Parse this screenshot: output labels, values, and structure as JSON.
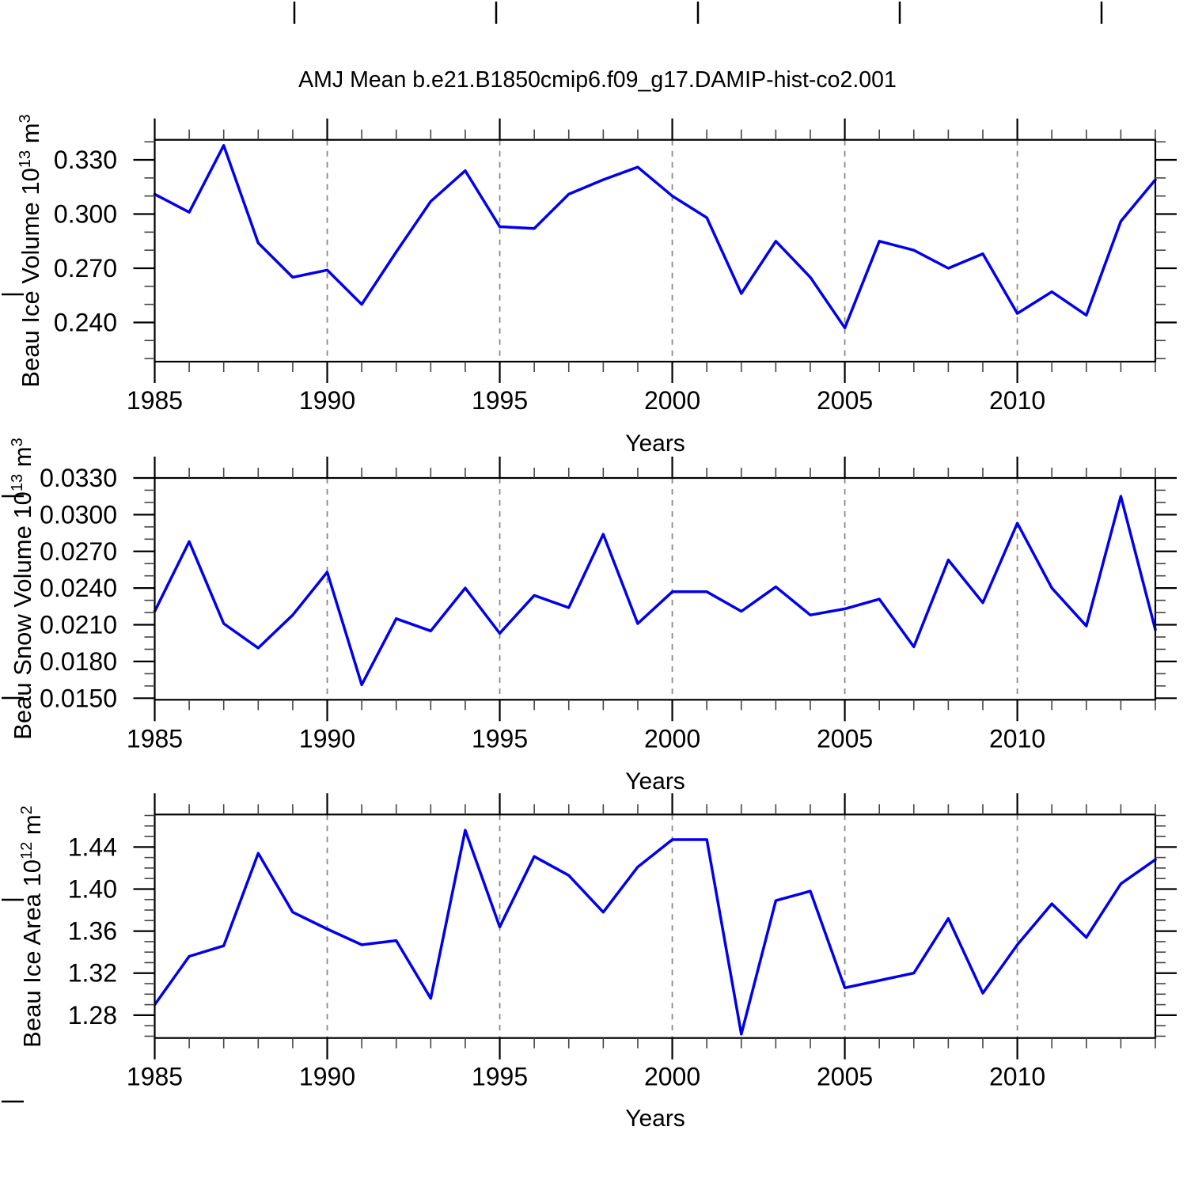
{
  "title": "AMJ Mean b.e21.B1850cmip6.f09_g17.DAMIP-hist-co2.001",
  "line_color": "#0000ee",
  "years": [
    1985,
    1986,
    1987,
    1988,
    1989,
    1990,
    1991,
    1992,
    1993,
    1994,
    1995,
    1996,
    1997,
    1998,
    1999,
    2000,
    2001,
    2002,
    2003,
    2004,
    2005,
    2006,
    2007,
    2008,
    2009,
    2010,
    2011,
    2012,
    2013,
    2014
  ],
  "x_major_ticks": [
    1985,
    1990,
    1995,
    2000,
    2005,
    2010
  ],
  "grid_years": [
    1990,
    1995,
    2000,
    2005,
    2010
  ],
  "chart_data": [
    {
      "type": "line",
      "name": "beau-ice-volume",
      "ylabel": {
        "base1": "Beau Ice Volume 10",
        "sup1": "13",
        "base2": " m",
        "sup2": "3"
      },
      "xlabel": "Years",
      "x_tick_labels": [
        "1985",
        "1990",
        "1995",
        "2000",
        "2005",
        "2010"
      ],
      "x_range": [
        1985,
        2014
      ],
      "ylim": [
        0.2183,
        0.3411
      ],
      "y_major_ticks": [
        0.24,
        0.27,
        0.3,
        0.33
      ],
      "y_major_labels": [
        "0.240",
        "0.270",
        "0.300",
        "0.330"
      ],
      "y_minor_step": 0.01,
      "grid": "dashed-vertical",
      "values": [
        0.311,
        0.301,
        0.338,
        0.284,
        0.265,
        0.269,
        0.25,
        0.279,
        0.307,
        0.324,
        0.293,
        0.292,
        0.311,
        0.319,
        0.326,
        0.31,
        0.298,
        0.256,
        0.285,
        0.265,
        0.237,
        0.285,
        0.28,
        0.27,
        0.278,
        0.245,
        0.257,
        0.244,
        0.296,
        0.319
      ]
    },
    {
      "type": "line",
      "name": "beau-snow-volume",
      "ylabel": {
        "base1": "Beau Snow Volume 10",
        "sup1": "13",
        "base2": " m",
        "sup2": "3"
      },
      "xlabel": "Years",
      "x_tick_labels": [
        "1985",
        "1990",
        "1995",
        "2000",
        "2005",
        "2010"
      ],
      "x_range": [
        1985,
        2014
      ],
      "ylim": [
        0.01487,
        0.033
      ],
      "y_major_ticks": [
        0.015,
        0.018,
        0.021,
        0.024,
        0.027,
        0.03,
        0.033
      ],
      "y_major_labels": [
        "0.0150",
        "0.0180",
        "0.0210",
        "0.0240",
        "0.0270",
        "0.0300",
        "0.0330"
      ],
      "y_minor_step": 0.001,
      "grid": "dashed-vertical",
      "values": [
        0.0221,
        0.0278,
        0.0211,
        0.0191,
        0.0218,
        0.0253,
        0.0161,
        0.0215,
        0.0205,
        0.024,
        0.0203,
        0.0234,
        0.0224,
        0.0284,
        0.0211,
        0.0237,
        0.0237,
        0.0221,
        0.0241,
        0.0218,
        0.0223,
        0.0231,
        0.0192,
        0.0263,
        0.0228,
        0.0293,
        0.024,
        0.0209,
        0.0315,
        0.0206
      ]
    },
    {
      "type": "line",
      "name": "beau-ice-area",
      "ylabel": {
        "base1": "Beau Ice Area 10",
        "sup1": "12",
        "base2": " m",
        "sup2": "2"
      },
      "xlabel": "Years",
      "x_tick_labels": [
        "1985",
        "1990",
        "1995",
        "2000",
        "2005",
        "2010"
      ],
      "x_range": [
        1985,
        2014
      ],
      "ylim": [
        1.2583,
        1.4709
      ],
      "y_major_ticks": [
        1.28,
        1.32,
        1.36,
        1.4,
        1.44
      ],
      "y_major_labels": [
        "1.28",
        "1.32",
        "1.36",
        "1.40",
        "1.44"
      ],
      "y_minor_step": 0.01,
      "grid": "dashed-vertical",
      "values": [
        1.29,
        1.336,
        1.346,
        1.434,
        1.378,
        1.362,
        1.347,
        1.351,
        1.296,
        1.456,
        1.364,
        1.431,
        1.413,
        1.378,
        1.421,
        1.447,
        1.447,
        1.262,
        1.389,
        1.398,
        1.306,
        1.313,
        1.32,
        1.372,
        1.301,
        1.347,
        1.386,
        1.354,
        1.405,
        1.428
      ]
    }
  ]
}
